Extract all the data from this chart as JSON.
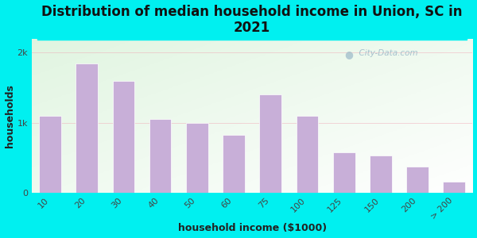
{
  "title": "Distribution of median household income in Union, SC in\n2021",
  "xlabel": "household income ($1000)",
  "ylabel": "households",
  "categories": [
    "10",
    "20",
    "30",
    "40",
    "50",
    "60",
    "75",
    "100",
    "125",
    "150",
    "200",
    "> 200"
  ],
  "values": [
    1100,
    1850,
    1600,
    1050,
    1000,
    820,
    1400,
    1100,
    580,
    530,
    370,
    160
  ],
  "bar_color": "#c8afd8",
  "bar_edge_color": "#c8afd8",
  "background_color": "#00f0f0",
  "ylim": [
    0,
    2200
  ],
  "yticks": [
    0,
    1000,
    2000
  ],
  "ytick_labels": [
    "0",
    "1k",
    "2k"
  ],
  "title_fontsize": 12,
  "axis_label_fontsize": 9,
  "tick_fontsize": 8,
  "watermark": "  City-Data.com",
  "plot_bg_color": "#e8f5e8"
}
